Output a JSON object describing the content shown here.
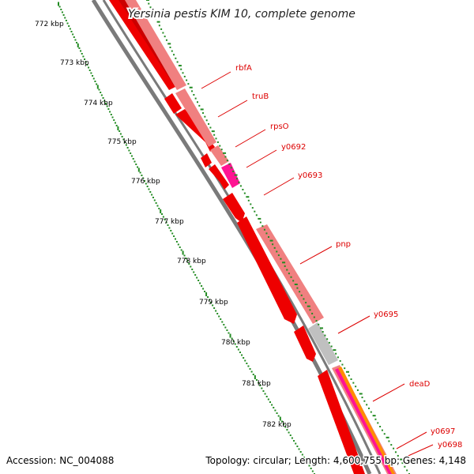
{
  "title": "Yersinia pestis KIM 10, complete genome",
  "footer": {
    "accession": "Accession: NC_004088",
    "summary": "Topology: circular; Length: 4,600,755 bp; Genes: 4,148"
  },
  "ticks": [
    {
      "label": "772 kbp"
    },
    {
      "label": "773 kbp"
    },
    {
      "label": "774 kbp"
    },
    {
      "label": "775 kbp"
    },
    {
      "label": "776 kbp"
    },
    {
      "label": "777 kbp"
    },
    {
      "label": "778 kbp"
    },
    {
      "label": "779 kbp"
    },
    {
      "label": "780 kbp"
    },
    {
      "label": "781 kbp"
    },
    {
      "label": "782 kbp"
    }
  ],
  "genes": [
    {
      "label": "rbfA"
    },
    {
      "label": "truB"
    },
    {
      "label": "rpsO"
    },
    {
      "label": "y0692"
    },
    {
      "label": "y0693"
    },
    {
      "label": "pnp"
    },
    {
      "label": "y0695"
    },
    {
      "label": "deaD"
    },
    {
      "label": "y0697"
    },
    {
      "label": "y0698"
    }
  ],
  "colors": {
    "backbone": "#7a7a7a",
    "cds": "#ee0000",
    "gene": "#f08080",
    "pseudo": "#c0c0c0",
    "misc": "#ff1493",
    "tick": "#228b22",
    "label": "#dd0000"
  }
}
